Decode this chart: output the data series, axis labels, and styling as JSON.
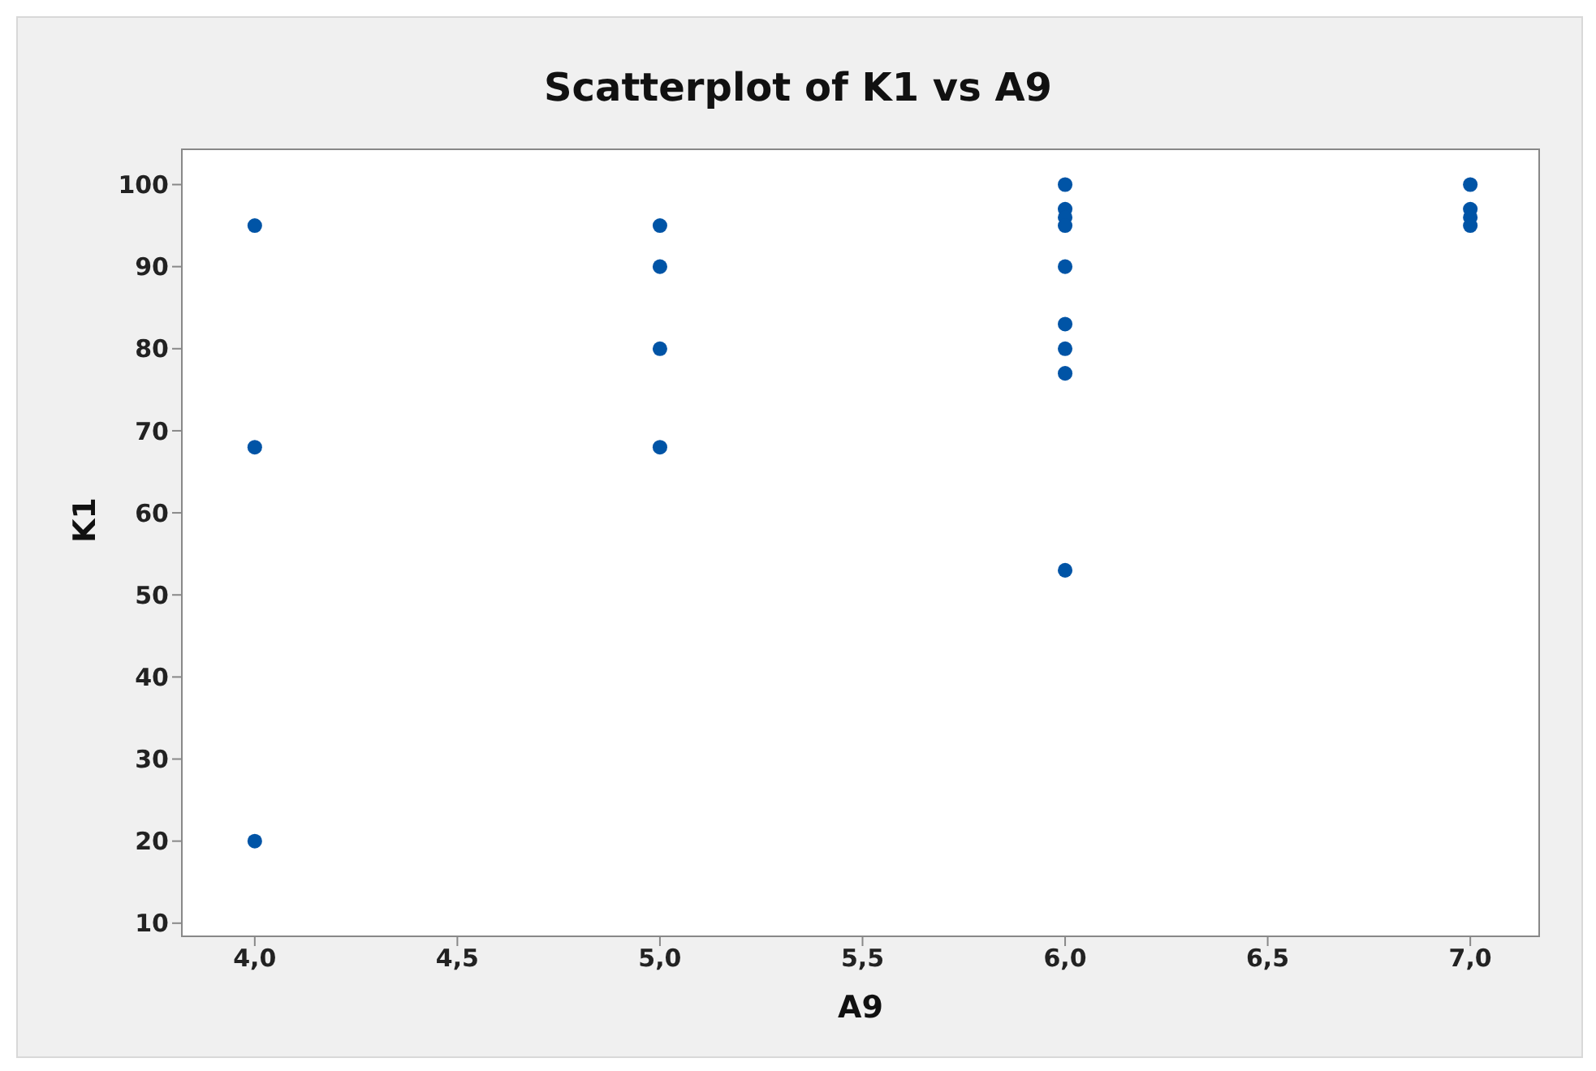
{
  "chart_data": {
    "type": "scatter",
    "title": "Scatterplot of K1 vs A9",
    "xlabel": "A9",
    "ylabel": "K1",
    "series": [
      {
        "color": "#0054a6",
        "x": [
          4,
          4,
          4,
          5,
          5,
          5,
          5,
          6,
          6,
          6,
          6,
          6,
          6,
          6,
          6,
          6,
          7,
          7,
          7,
          7
        ],
        "values": [
          95,
          68,
          20,
          95,
          90,
          80,
          68,
          100,
          97,
          96,
          95,
          90,
          83,
          80,
          77,
          53,
          100,
          97,
          96,
          95
        ]
      }
    ],
    "xlim": [
      3.82,
      7.17
    ],
    "xticks": [
      {
        "value": 4,
        "label": "4,0"
      },
      {
        "value": 4.5,
        "label": "4,5"
      },
      {
        "value": 5,
        "label": "5,0"
      },
      {
        "value": 5.5,
        "label": "5,5"
      },
      {
        "value": 6,
        "label": "6,0"
      },
      {
        "value": 6.5,
        "label": "6,5"
      },
      {
        "value": 7,
        "label": "7,0"
      }
    ],
    "ylim": [
      8.4,
      104.3
    ],
    "yticks": [
      10,
      20,
      30,
      40,
      50,
      60,
      70,
      80,
      90,
      100
    ],
    "marker": "circle"
  }
}
